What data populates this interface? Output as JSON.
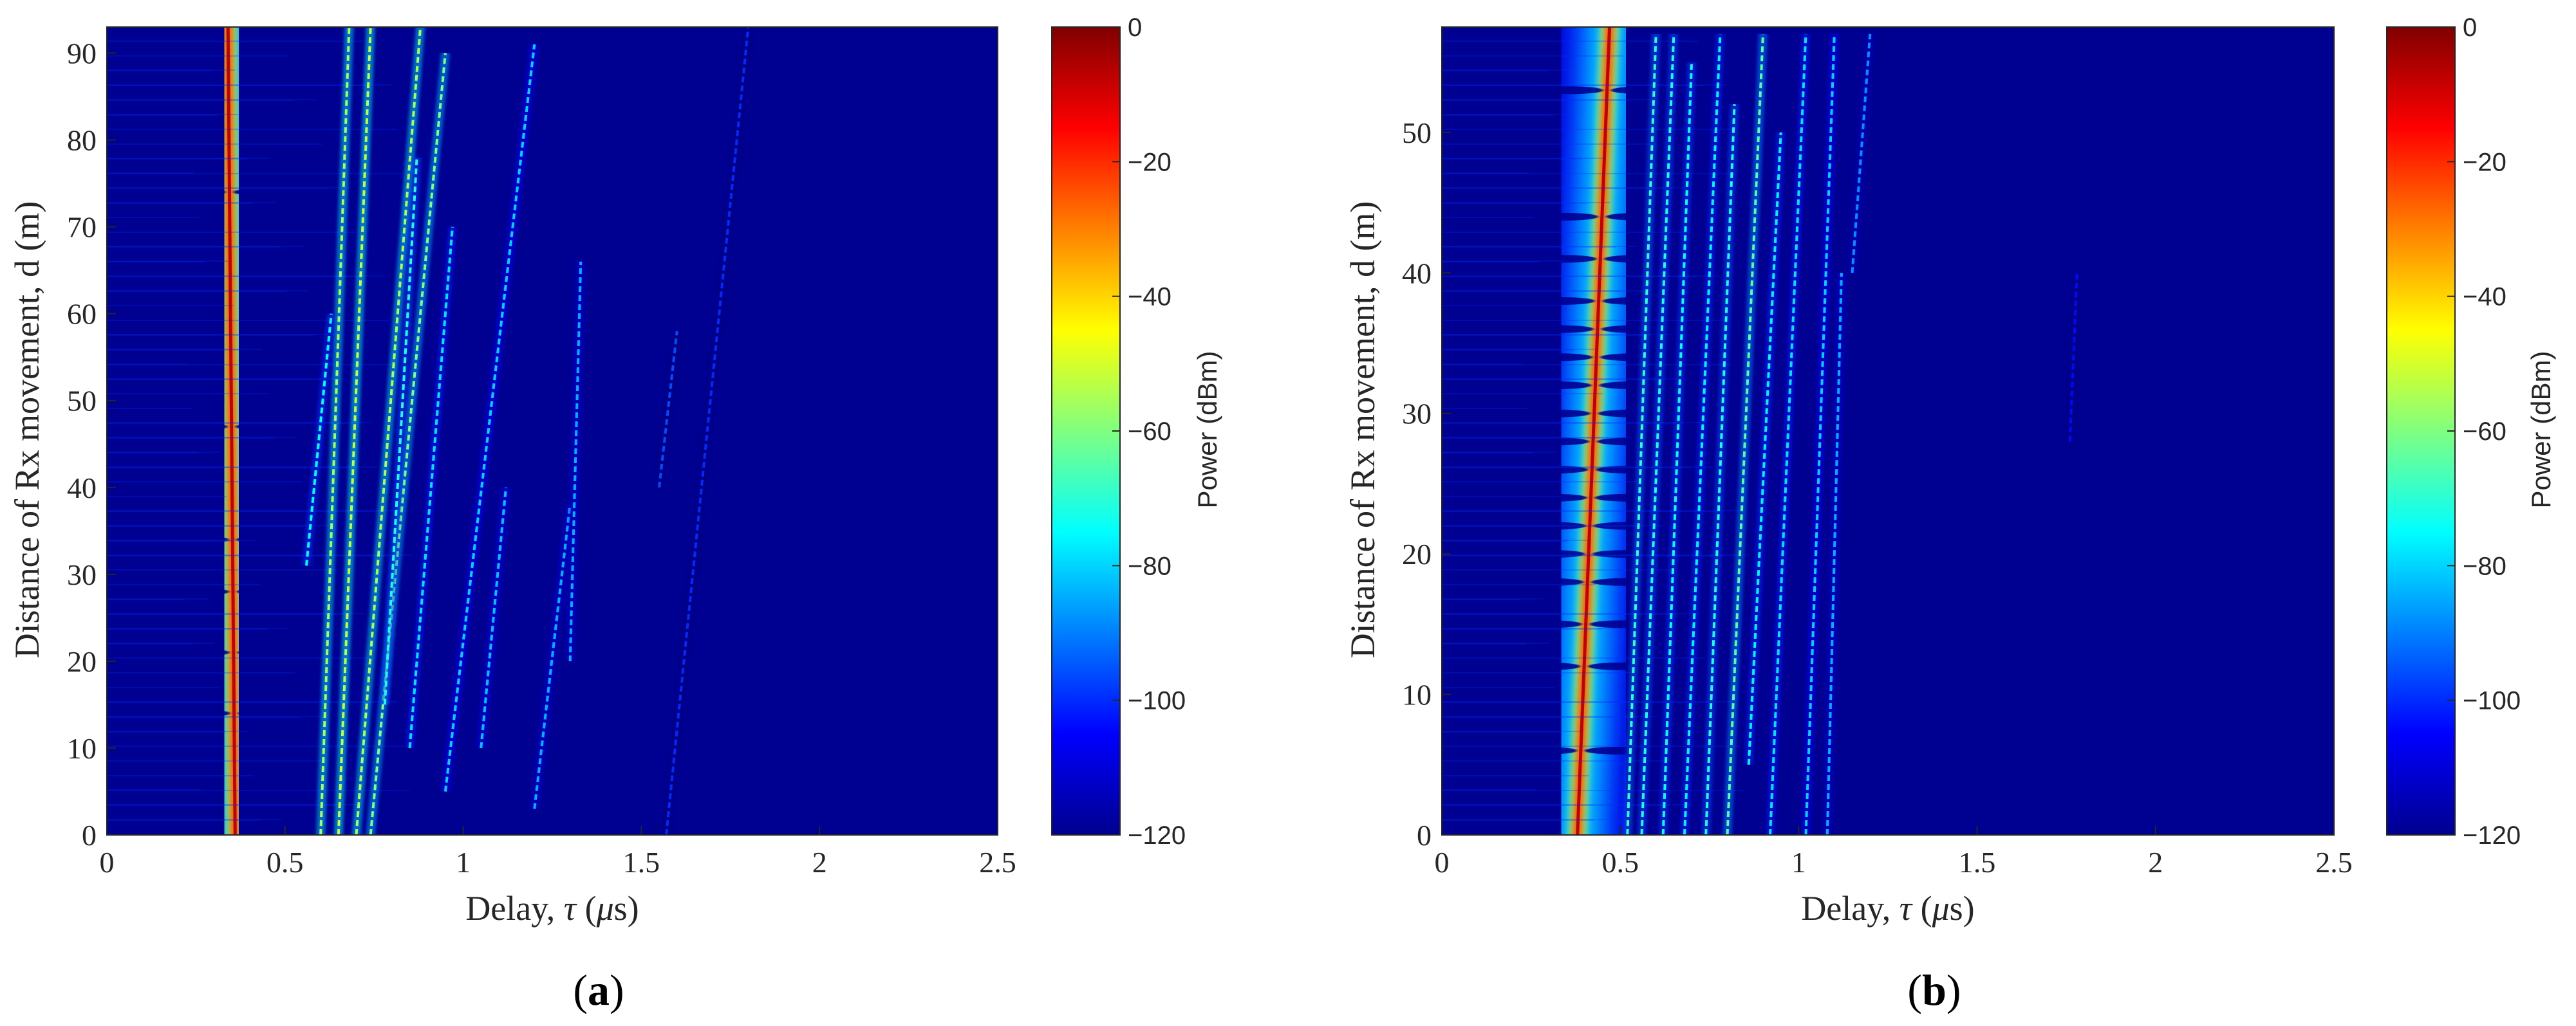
{
  "chart_data": [
    {
      "type": "heatmap",
      "panel": "(a)",
      "panel_bold": "a",
      "xlabel_prefix": "Delay, ",
      "xlabel_symbol": "τ",
      "xlabel_unit_open": " (",
      "xlabel_unit_mu": "μ",
      "xlabel_unit_rest": "s)",
      "ylabel": "Distance of Rx movement, d (m)",
      "xlim": [
        0,
        2.5
      ],
      "ylim": [
        0,
        93
      ],
      "xticks": [
        "0",
        "0.5",
        "1",
        "1.5",
        "2",
        "2.5"
      ],
      "xtick_values": [
        0,
        0.5,
        1,
        1.5,
        2,
        2.5
      ],
      "yticks": [
        "0",
        "10",
        "20",
        "30",
        "40",
        "50",
        "60",
        "70",
        "80",
        "90"
      ],
      "ytick_values": [
        0,
        10,
        20,
        30,
        40,
        50,
        60,
        70,
        80,
        90
      ],
      "colorbar": {
        "label": "Power (dBm)",
        "range": [
          -120,
          0
        ],
        "ticks": [
          "0",
          "−20",
          "−40",
          "−60",
          "−80",
          "−100",
          "−120"
        ],
        "tick_values": [
          0,
          -20,
          -40,
          -60,
          -80,
          -100,
          -120
        ],
        "colormap": "jet"
      },
      "main_path": {
        "delay_start": 0.36,
        "delay_end": 0.34,
        "nulls_m": [
          14,
          21,
          28,
          34,
          47,
          74
        ]
      },
      "multipath_lines": [
        {
          "d0": 0.6,
          "d1": 0.68,
          "y0": 0,
          "y1": 93,
          "level": -55
        },
        {
          "d0": 0.65,
          "d1": 0.74,
          "y0": 0,
          "y1": 93,
          "level": -52
        },
        {
          "d0": 0.7,
          "d1": 0.88,
          "y0": 0,
          "y1": 93,
          "level": -55
        },
        {
          "d0": 0.74,
          "d1": 0.95,
          "y0": 0,
          "y1": 90,
          "level": -60
        },
        {
          "d0": 0.56,
          "d1": 0.63,
          "y0": 31,
          "y1": 60,
          "level": -75
        },
        {
          "d0": 0.78,
          "d1": 0.87,
          "y0": 15,
          "y1": 78,
          "level": -72
        },
        {
          "d0": 0.85,
          "d1": 0.97,
          "y0": 10,
          "y1": 70,
          "level": -78
        },
        {
          "d0": 0.95,
          "d1": 1.2,
          "y0": 5,
          "y1": 91,
          "level": -80
        },
        {
          "d0": 1.05,
          "d1": 1.12,
          "y0": 10,
          "y1": 40,
          "level": -82
        },
        {
          "d0": 1.2,
          "d1": 1.3,
          "y0": 3,
          "y1": 38,
          "level": -84
        },
        {
          "d0": 1.3,
          "d1": 1.33,
          "y0": 20,
          "y1": 66,
          "level": -84
        },
        {
          "d0": 1.57,
          "d1": 1.8,
          "y0": 0,
          "y1": 93,
          "level": -100
        },
        {
          "d0": 1.55,
          "d1": 1.6,
          "y0": 40,
          "y1": 58,
          "level": -96
        }
      ]
    },
    {
      "type": "heatmap",
      "panel": "(b)",
      "panel_bold": "b",
      "xlabel_prefix": "Delay, ",
      "xlabel_symbol": "τ",
      "xlabel_unit_open": " (",
      "xlabel_unit_mu": "μ",
      "xlabel_unit_rest": "s)",
      "ylabel": "Distance of Rx movement, d (m)",
      "xlim": [
        0,
        2.5
      ],
      "ylim": [
        0,
        57.5
      ],
      "xticks": [
        "0",
        "0.5",
        "1",
        "1.5",
        "2",
        "2.5"
      ],
      "xtick_values": [
        0,
        0.5,
        1,
        1.5,
        2,
        2.5
      ],
      "yticks": [
        "0",
        "10",
        "20",
        "30",
        "40",
        "50"
      ],
      "ytick_values": [
        0,
        10,
        20,
        30,
        40,
        50
      ],
      "colorbar": {
        "label": "Power (dBm)",
        "range": [
          -120,
          0
        ],
        "ticks": [
          "0",
          "−20",
          "−40",
          "−60",
          "−80",
          "−100",
          "−120"
        ],
        "tick_values": [
          0,
          -20,
          -40,
          -60,
          -80,
          -100,
          -120
        ],
        "colormap": "jet"
      },
      "main_path": {
        "delay_start": 0.38,
        "delay_end": 0.47,
        "nulls_m": [
          6,
          12,
          15,
          18,
          20,
          22,
          24,
          26,
          28,
          30,
          32,
          34,
          36,
          38,
          41,
          44,
          53
        ]
      },
      "multipath_lines": [
        {
          "d0": 0.52,
          "d1": 0.6,
          "y0": 0,
          "y1": 57,
          "level": -70
        },
        {
          "d0": 0.56,
          "d1": 0.65,
          "y0": 0,
          "y1": 57,
          "level": -72
        },
        {
          "d0": 0.62,
          "d1": 0.7,
          "y0": 0,
          "y1": 55,
          "level": -74
        },
        {
          "d0": 0.68,
          "d1": 0.78,
          "y0": 0,
          "y1": 57,
          "level": -76
        },
        {
          "d0": 0.74,
          "d1": 0.82,
          "y0": 0,
          "y1": 52,
          "level": -72
        },
        {
          "d0": 0.8,
          "d1": 0.9,
          "y0": 0,
          "y1": 57,
          "level": -65
        },
        {
          "d0": 0.86,
          "d1": 0.95,
          "y0": 5,
          "y1": 50,
          "level": -76
        },
        {
          "d0": 0.92,
          "d1": 1.02,
          "y0": 0,
          "y1": 57,
          "level": -78
        },
        {
          "d0": 1.02,
          "d1": 1.1,
          "y0": 0,
          "y1": 57,
          "level": -80
        },
        {
          "d0": 1.08,
          "d1": 1.12,
          "y0": 0,
          "y1": 40,
          "level": -84
        },
        {
          "d0": 1.15,
          "d1": 1.2,
          "y0": 40,
          "y1": 57,
          "level": -88
        },
        {
          "d0": 1.76,
          "d1": 1.78,
          "y0": 28,
          "y1": 40,
          "level": -104
        }
      ]
    }
  ]
}
